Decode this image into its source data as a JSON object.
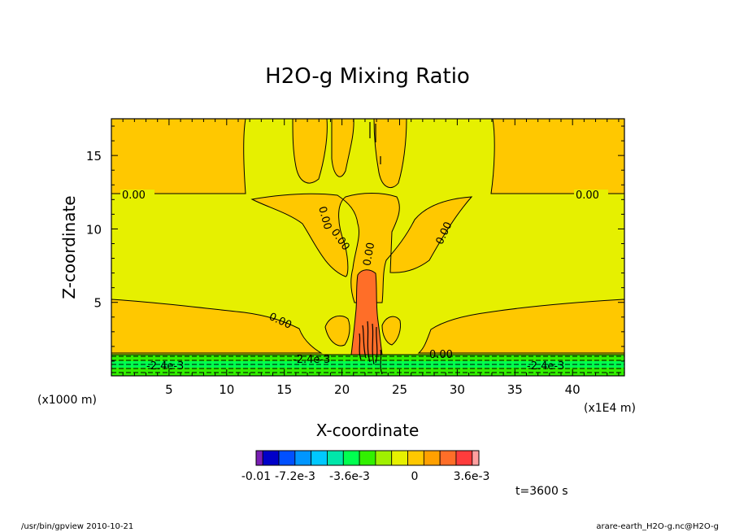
{
  "chart_data": {
    "type": "heatmap",
    "title": "H2O-g Mixing Ratio",
    "xlabel": "X-coordinate",
    "ylabel": "Z-coordinate",
    "x_unit_label": "(x1E4 m)",
    "y_unit_label": "(x1000 m)",
    "xlim": [
      0,
      44.5
    ],
    "ylim": [
      0,
      17.5
    ],
    "x_ticks": [
      5,
      10,
      15,
      20,
      25,
      30,
      35,
      40
    ],
    "y_ticks": [
      5,
      10,
      15
    ],
    "x_tick_labels": [
      "5",
      "10",
      "15",
      "20",
      "25",
      "30",
      "35",
      "40"
    ],
    "y_tick_labels": [
      "5",
      "10",
      "15"
    ],
    "contour_labels": [
      "0.00",
      "0.00",
      "0.00",
      "0.00",
      "0.00",
      "0.00",
      "0.00",
      "0.00",
      "-2.4e-3",
      "-2.4e-3",
      "-2.4e-3"
    ],
    "colorbar": {
      "colors": [
        "#7a1eb4",
        "#0000c8",
        "#0050ff",
        "#0096ff",
        "#00c8ff",
        "#00e6aa",
        "#00ff50",
        "#32f000",
        "#a0f000",
        "#e6f000",
        "#ffc800",
        "#ffa000",
        "#ff6e28",
        "#ff3c3c",
        "#ffa0a0"
      ],
      "tick_labels": [
        "-0.01",
        "-7.2e-3",
        "-3.6e-3",
        "0",
        "3.6e-3"
      ]
    },
    "time_label": "t=3600 s"
  },
  "footer": {
    "left": "/usr/bin/gpview   2010-10-21",
    "right": "arare-earth_H2O-g.nc@H2O-g"
  }
}
